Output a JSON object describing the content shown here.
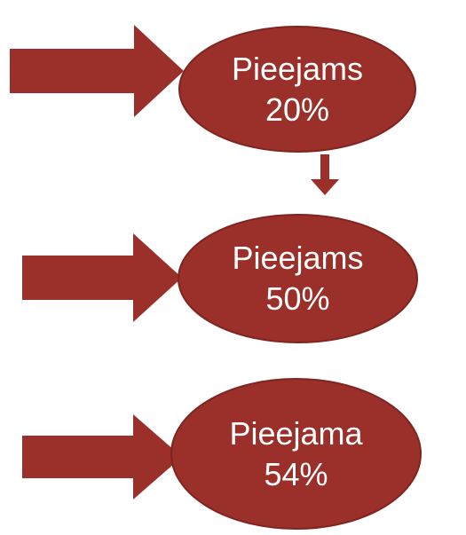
{
  "colors": {
    "shape_fill": "#9b2f2a",
    "shape_stroke": "#7f2520",
    "text": "#ffffff",
    "background": "#ffffff"
  },
  "nodes": [
    {
      "name": "Pieejams",
      "value": "20%"
    },
    {
      "name": "Pieejams",
      "value": "50%"
    },
    {
      "name": "Pieejama",
      "value": "54%"
    }
  ],
  "arrows": [
    {
      "direction": "right",
      "target_node": 0
    },
    {
      "direction": "down",
      "from_node": 0,
      "to_node": 1
    },
    {
      "direction": "right",
      "target_node": 1
    },
    {
      "direction": "right",
      "target_node": 2
    }
  ]
}
